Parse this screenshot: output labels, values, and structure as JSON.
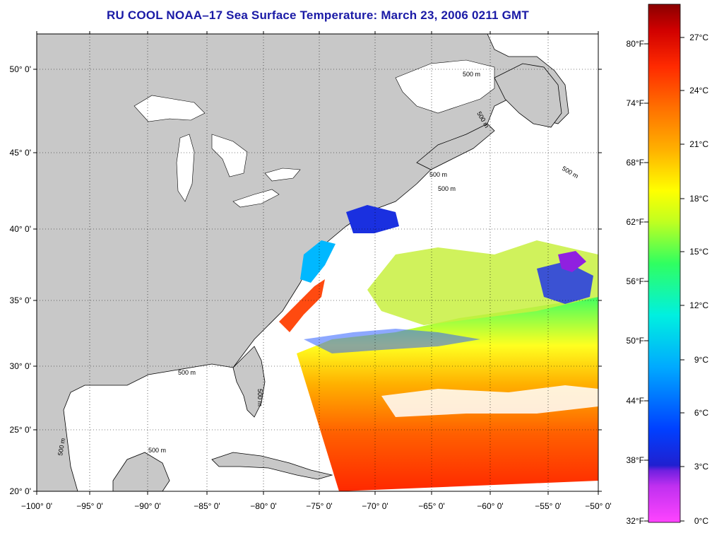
{
  "title": "RU COOL  NOAA–17  Sea Surface Temperature:  March 23, 2006 0211 GMT",
  "colors": {
    "title": "#1a1aa6",
    "land": "#c8c8c8",
    "cloud_water": "#ffffff",
    "gradient": [
      "#ff44ff",
      "#a020f0",
      "#2020d0",
      "#0060ff",
      "#00c8ff",
      "#00f0d0",
      "#40ff40",
      "#ffff00",
      "#ffaa00",
      "#ff5000",
      "#ff1a00",
      "#8a0000"
    ]
  },
  "map": {
    "lon_labels": [
      "−100° 0'",
      "−95° 0'",
      "−90° 0'",
      "−85° 0'",
      "−80° 0'",
      "−75° 0'",
      "−70° 0'",
      "−65° 0'",
      "−60° 0'",
      "−55° 0'",
      "−50° 0'"
    ],
    "lat_labels": [
      "50° 0'",
      "45° 0'",
      "40° 0'",
      "35° 0'",
      "30° 0'",
      "25° 0'",
      "20° 0'"
    ],
    "isobath_labels": [
      "500 m",
      "500 m",
      "500 m",
      "500 m",
      "500 m",
      "500 m",
      "500 m",
      "500 m",
      "500 m"
    ]
  },
  "colorbar": {
    "fahrenheit": [
      "80°F",
      "74°F",
      "68°F",
      "62°F",
      "56°F",
      "50°F",
      "44°F",
      "38°F",
      "32°F"
    ],
    "celsius": [
      "27°C",
      "24°C",
      "21°C",
      "18°C",
      "15°C",
      "12°C",
      "9°C",
      "6°C",
      "3°C",
      "0°C"
    ]
  }
}
